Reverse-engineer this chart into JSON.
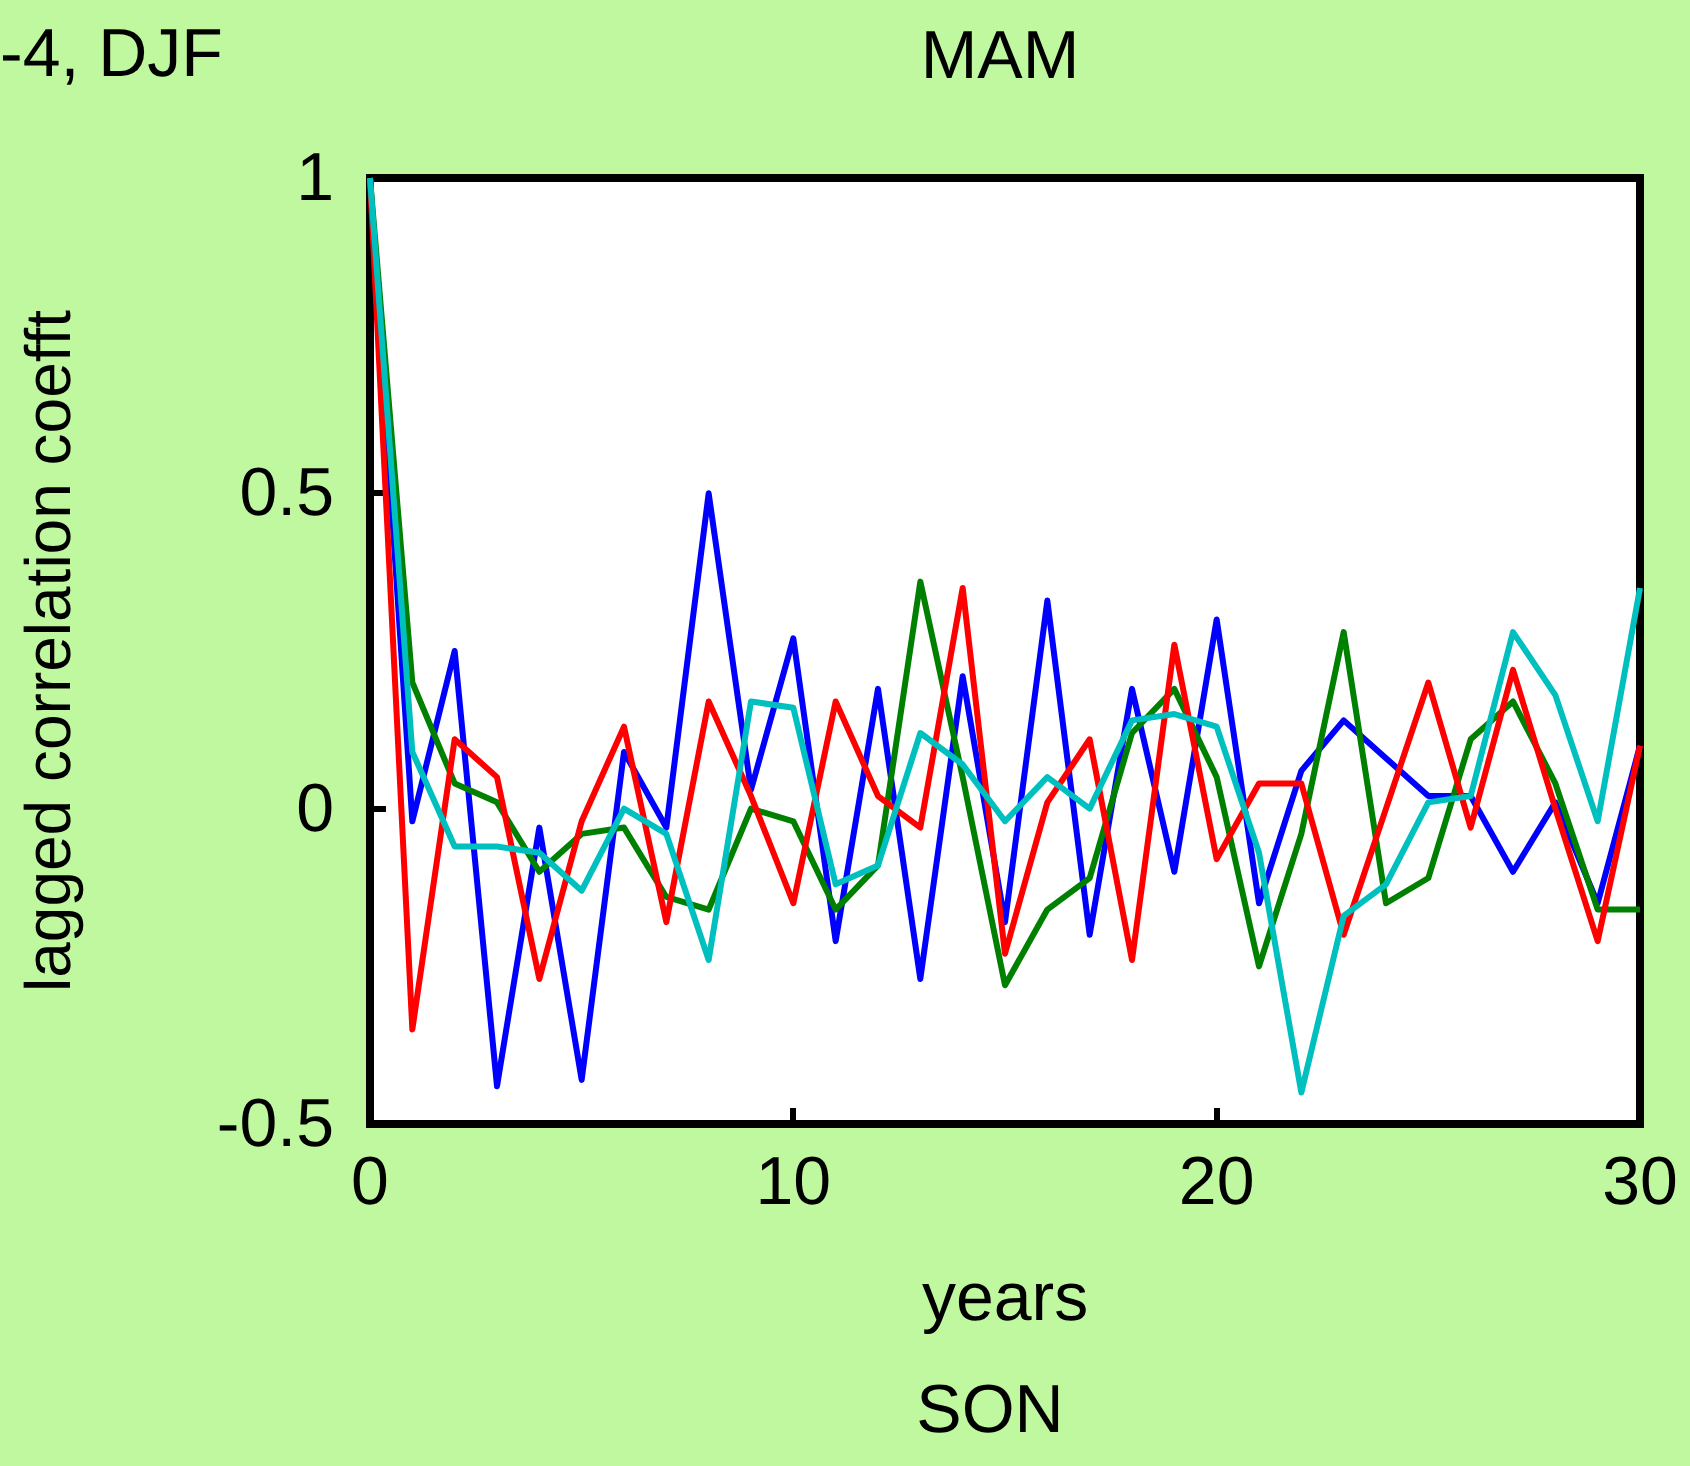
{
  "chart_data": {
    "type": "line",
    "title": "MAM",
    "xlabel": "years",
    "ylabel": "lagged correlation coefft",
    "annotations": [
      "-4, DJF",
      "SON"
    ],
    "x": [
      0,
      1,
      2,
      3,
      4,
      5,
      6,
      7,
      8,
      9,
      10,
      11,
      12,
      13,
      14,
      15,
      16,
      17,
      18,
      19,
      20,
      21,
      22,
      23,
      24,
      25,
      26,
      27,
      28,
      29,
      30
    ],
    "series": [
      {
        "color": "#0000ff",
        "values": [
          1,
          -0.02,
          0.25,
          -0.44,
          -0.03,
          -0.43,
          0.09,
          -0.03,
          0.5,
          0.03,
          0.27,
          -0.21,
          0.19,
          -0.27,
          0.21,
          -0.18,
          0.33,
          -0.2,
          0.19,
          -0.1,
          0.3,
          -0.15,
          0.06,
          0.14,
          0.08,
          0.02,
          0.02,
          -0.1,
          0.01,
          -0.15,
          0.1
        ]
      },
      {
        "color": "#008000",
        "values": [
          1,
          0.2,
          0.04,
          0.01,
          -0.1,
          -0.04,
          -0.03,
          -0.14,
          -0.16,
          0.0,
          -0.02,
          -0.16,
          -0.09,
          0.36,
          0.05,
          -0.28,
          -0.16,
          -0.11,
          0.12,
          0.19,
          0.05,
          -0.25,
          -0.04,
          0.28,
          -0.15,
          -0.11,
          0.11,
          0.17,
          0.04,
          -0.16,
          -0.16
        ]
      },
      {
        "color": "#ff0000",
        "values": [
          1,
          -0.35,
          0.11,
          0.05,
          -0.27,
          -0.02,
          0.13,
          -0.18,
          0.17,
          0.02,
          -0.15,
          0.17,
          0.02,
          -0.03,
          0.35,
          -0.23,
          0.01,
          0.11,
          -0.24,
          0.26,
          -0.08,
          0.04,
          0.04,
          -0.2,
          0.0,
          0.2,
          -0.03,
          0.22,
          0.0,
          -0.21,
          0.1
        ]
      },
      {
        "color": "#00bfbf",
        "values": [
          1,
          0.09,
          -0.06,
          -0.06,
          -0.07,
          -0.13,
          0.0,
          -0.04,
          -0.24,
          0.17,
          0.16,
          -0.12,
          -0.09,
          0.12,
          0.07,
          -0.02,
          0.05,
          0.0,
          0.14,
          0.15,
          0.13,
          -0.07,
          -0.45,
          -0.17,
          -0.12,
          0.01,
          0.02,
          0.28,
          0.18,
          -0.02,
          0.35
        ]
      }
    ],
    "xlim": [
      0,
      30
    ],
    "xticks": [
      0,
      10,
      20,
      30
    ],
    "ylim": [
      -0.5,
      1
    ],
    "yticks": [
      -0.5,
      0,
      0.5,
      1
    ],
    "grid": false,
    "marker": "none",
    "line_style": "solid"
  }
}
